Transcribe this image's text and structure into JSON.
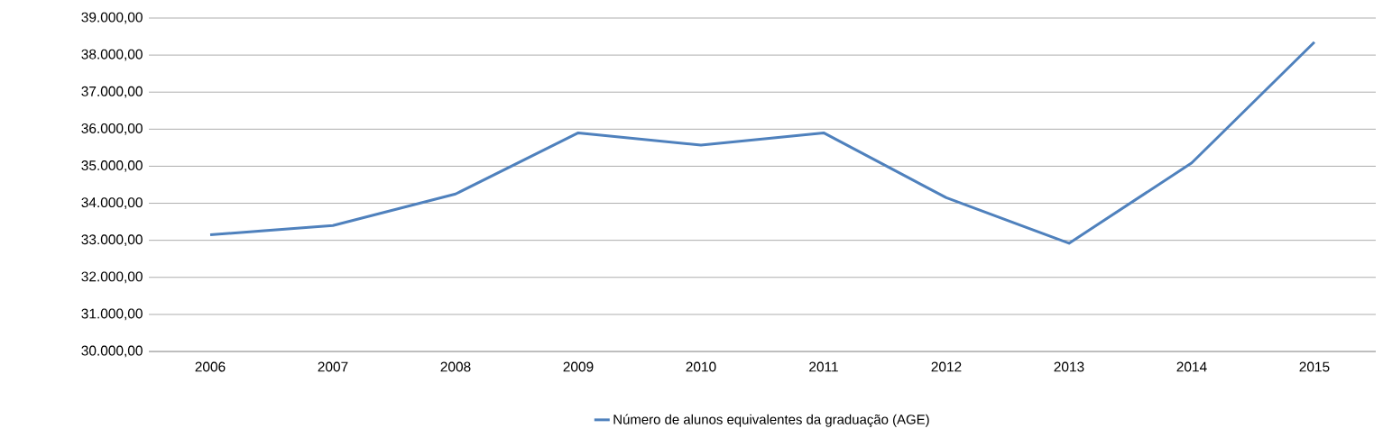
{
  "chart_data": {
    "type": "line",
    "categories": [
      "2006",
      "2007",
      "2008",
      "2009",
      "2010",
      "2011",
      "2012",
      "2013",
      "2014",
      "2015"
    ],
    "series": [
      {
        "name": "Número de alunos equivalentes da graduação (AGE)",
        "color": "#4f81bd",
        "values": [
          33150,
          33400,
          34250,
          35900,
          35570,
          35900,
          34150,
          32920,
          35090,
          38350
        ]
      }
    ],
    "ylim": [
      30000,
      39000
    ],
    "yticks": [
      {
        "value": 30000,
        "label": "30.000,00"
      },
      {
        "value": 31000,
        "label": "31.000,00"
      },
      {
        "value": 32000,
        "label": "32.000,00"
      },
      {
        "value": 33000,
        "label": "33.000,00"
      },
      {
        "value": 34000,
        "label": "34.000,00"
      },
      {
        "value": 35000,
        "label": "35.000,00"
      },
      {
        "value": 36000,
        "label": "36.000,00"
      },
      {
        "value": 37000,
        "label": "37.000,00"
      },
      {
        "value": 38000,
        "label": "38.000,00"
      },
      {
        "value": 39000,
        "label": "39.000,00"
      }
    ],
    "grid": "y",
    "legend": "bottom"
  }
}
